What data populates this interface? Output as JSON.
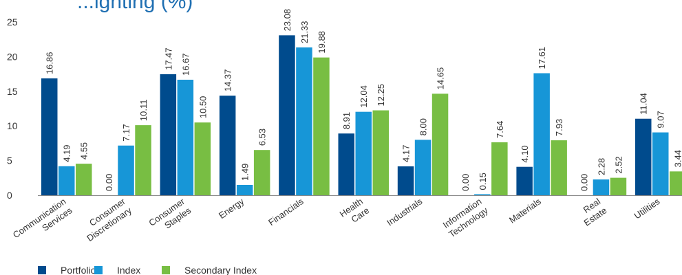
{
  "chart_data": {
    "type": "bar",
    "title": "...ighting (%)",
    "xlabel": "",
    "ylabel": "",
    "ylim": [
      0,
      25
    ],
    "yticks": [
      0,
      5,
      10,
      15,
      20,
      25
    ],
    "grid": false,
    "legend_position": "bottom-left",
    "categories": [
      [
        "Communication",
        "Services"
      ],
      [
        "Consumer",
        "Discretionary"
      ],
      [
        "Consumer",
        "Staples"
      ],
      [
        "Energy"
      ],
      [
        "Financials"
      ],
      [
        "Health",
        "Care"
      ],
      [
        "Industrials"
      ],
      [
        "Information",
        "Technology"
      ],
      [
        "Materials"
      ],
      [
        "Real",
        "Estate"
      ],
      [
        "Utilities"
      ]
    ],
    "series": [
      {
        "name": "Portfolio",
        "color": "#004b8d",
        "values": [
          16.86,
          0.0,
          17.47,
          14.37,
          23.08,
          8.91,
          4.17,
          0.0,
          4.1,
          0.0,
          11.04
        ],
        "labels": [
          "16.86",
          "0.00",
          "17.47",
          "14.37",
          "23.08",
          "8.91",
          "4.17",
          "0.00",
          "4.10",
          "0.00",
          "11.04"
        ]
      },
      {
        "name": "Index",
        "color": "#1796d7",
        "values": [
          4.19,
          7.17,
          16.67,
          1.49,
          21.33,
          12.04,
          8.0,
          0.15,
          17.61,
          2.28,
          9.07
        ],
        "labels": [
          "4.19",
          "7.17",
          "16.67",
          "1.49",
          "21.33",
          "12.04",
          "8.00",
          "0.15",
          "17.61",
          "2.28",
          "9.07"
        ]
      },
      {
        "name": "Secondary Index",
        "color": "#78be43",
        "values": [
          4.55,
          10.11,
          10.5,
          6.53,
          19.88,
          12.25,
          14.65,
          7.64,
          7.93,
          2.52,
          3.44
        ],
        "labels": [
          "4.55",
          "10.11",
          "10.50",
          "6.53",
          "19.88",
          "12.25",
          "14.65",
          "7.64",
          "7.93",
          "2.52",
          "3.44"
        ]
      }
    ]
  }
}
